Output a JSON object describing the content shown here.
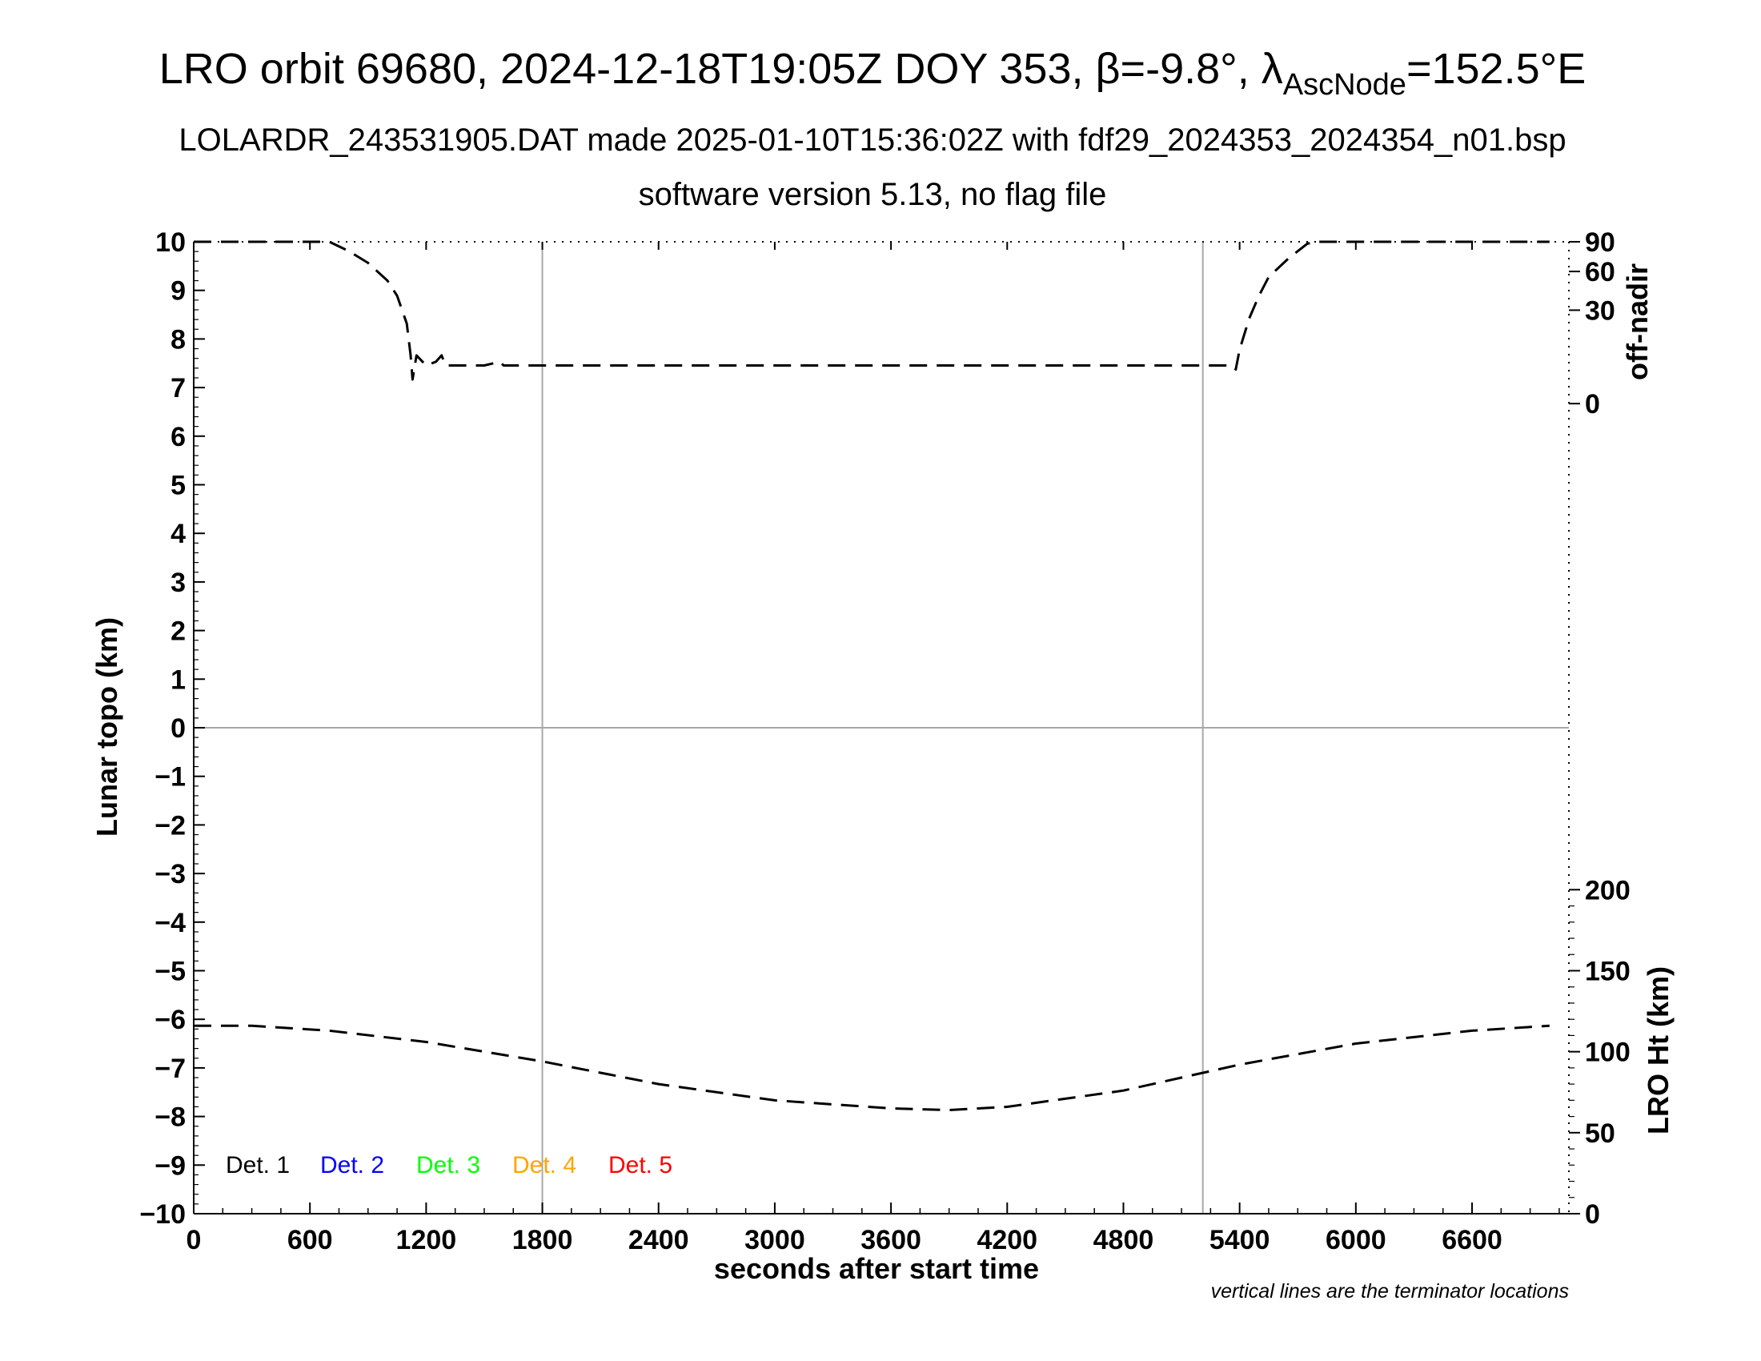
{
  "title": {
    "main": "LRO orbit 69680, 2024-12-18T19:05Z DOY 353, β=-9.8°, λ",
    "subscript": "AscNode",
    "tail": "=152.5°E"
  },
  "subtitle": "LOLARDR_243531905.DAT made 2025-01-10T15:36:02Z with fdf29_2024353_2024354_n01.bsp",
  "subtitle2": "software version 5.13, no flag file",
  "note": "vertical lines are the terminator locations",
  "chart_data": {
    "type": "line",
    "xlabel": "seconds after start time",
    "ylabel": "Lunar topo (km)",
    "y2label_top": "off-nadir",
    "y2label_bottom": "LRO Ht (km)",
    "xlim": [
      0,
      7100
    ],
    "ylim": [
      -10,
      10
    ],
    "x_ticks": [
      "0",
      "600",
      "1200",
      "1800",
      "2400",
      "3000",
      "3600",
      "4200",
      "4800",
      "5400",
      "6000",
      "6600"
    ],
    "y_ticks": [
      "10",
      "9",
      "8",
      "7",
      "6",
      "5",
      "4",
      "3",
      "2",
      "1",
      "0",
      "−1",
      "−2",
      "−3",
      "−4",
      "−5",
      "−6",
      "−7",
      "−8",
      "−9",
      "−10"
    ],
    "offnadir_ticks": [
      "90",
      "60",
      "30",
      "0"
    ],
    "height_ticks": [
      "200",
      "150",
      "100",
      "50",
      "0"
    ],
    "terminators": [
      1800,
      5210
    ],
    "legend": [
      {
        "label": "Det. 1",
        "color": "#000000"
      },
      {
        "label": "Det. 2",
        "color": "#0000ff"
      },
      {
        "label": "Det. 3",
        "color": "#00ff00"
      },
      {
        "label": "Det. 4",
        "color": "#ffa500"
      },
      {
        "label": "Det. 5",
        "color": "#ff0000"
      }
    ],
    "series": [
      {
        "axis": "off-nadir",
        "x": [
          0,
          700,
          800,
          900,
          1000,
          1050,
          1100,
          1120,
          1130,
          1150,
          1200,
          1250,
          1280,
          1300,
          1400,
          1500,
          1580,
          1600,
          1620,
          2000,
          3000,
          4000,
          5000,
          5360,
          5380,
          5400,
          5450,
          5500,
          5550,
          5650,
          5750,
          5800,
          6000,
          6500,
          7000
        ],
        "y": [
          90,
          90,
          80,
          68,
          52,
          40,
          22,
          8,
          2,
          8,
          5,
          6,
          8,
          5,
          5,
          5,
          6,
          5,
          5,
          5,
          5,
          5,
          5,
          5,
          4,
          10,
          25,
          40,
          55,
          72,
          88,
          90,
          90,
          90,
          90
        ]
      },
      {
        "axis": "LRO Ht",
        "x": [
          0,
          300,
          700,
          1200,
          1800,
          2400,
          3000,
          3600,
          3900,
          4200,
          4800,
          5400,
          6000,
          6600,
          7000
        ],
        "y": [
          116,
          116,
          113,
          106,
          94,
          80,
          70,
          65,
          64,
          66,
          76,
          92,
          105,
          113,
          116
        ]
      }
    ]
  }
}
